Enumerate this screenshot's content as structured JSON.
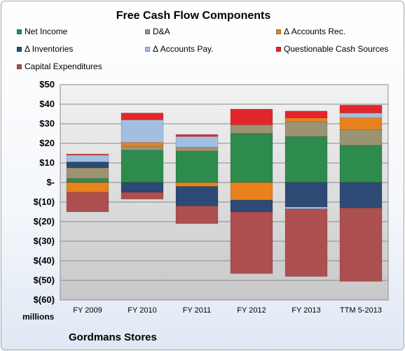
{
  "chart_data": {
    "type": "bar",
    "stacked": true,
    "title": "Free Cash Flow Components",
    "categories": [
      "FY 2009",
      "FY 2010",
      "FY 2011",
      "FY 2012",
      "FY 2013",
      "TTM 5-2013"
    ],
    "series": [
      {
        "name": "Net Income",
        "color": "#2e8b4e",
        "values": [
          2,
          16.5,
          16,
          25,
          23.5,
          19
        ]
      },
      {
        "name": "D&A",
        "color": "#9b9371",
        "values": [
          5.5,
          2,
          2,
          4.5,
          7.5,
          8
        ]
      },
      {
        "name": "Δ Accounts Rec.",
        "color": "#e8821e",
        "values": [
          -5,
          2,
          -2,
          -9,
          2,
          6
        ]
      },
      {
        "name": "Δ Inventories",
        "color": "#2c4a74",
        "values": [
          3,
          -5,
          -10,
          -6,
          -12.5,
          -13
        ]
      },
      {
        "name": "Δ Accounts Pay.",
        "color": "#a3bfe0",
        "values": [
          3.5,
          11.5,
          5.5,
          0,
          -1,
          2.5
        ]
      },
      {
        "name": "Questionable Cash Sources",
        "color": "#e3262c",
        "values": [
          0.5,
          3.5,
          1,
          8,
          3.5,
          4
        ]
      },
      {
        "name": "Capital Expenditures",
        "color": "#ad4f4f",
        "values": [
          -10,
          -3.5,
          -9,
          -31.5,
          -34.5,
          -37.5
        ]
      }
    ],
    "ylim": [
      -60,
      50
    ],
    "ytick_step": 10,
    "ytick_labels": [
      "$50",
      "$40",
      "$30",
      "$20",
      "$10",
      "$-",
      "$(10)",
      "$(20)",
      "$(30)",
      "$(40)",
      "$(50)",
      "$(60)"
    ],
    "units_label": "millions",
    "grid": true,
    "legend_position": "top"
  },
  "company": "Gordmans Stores"
}
